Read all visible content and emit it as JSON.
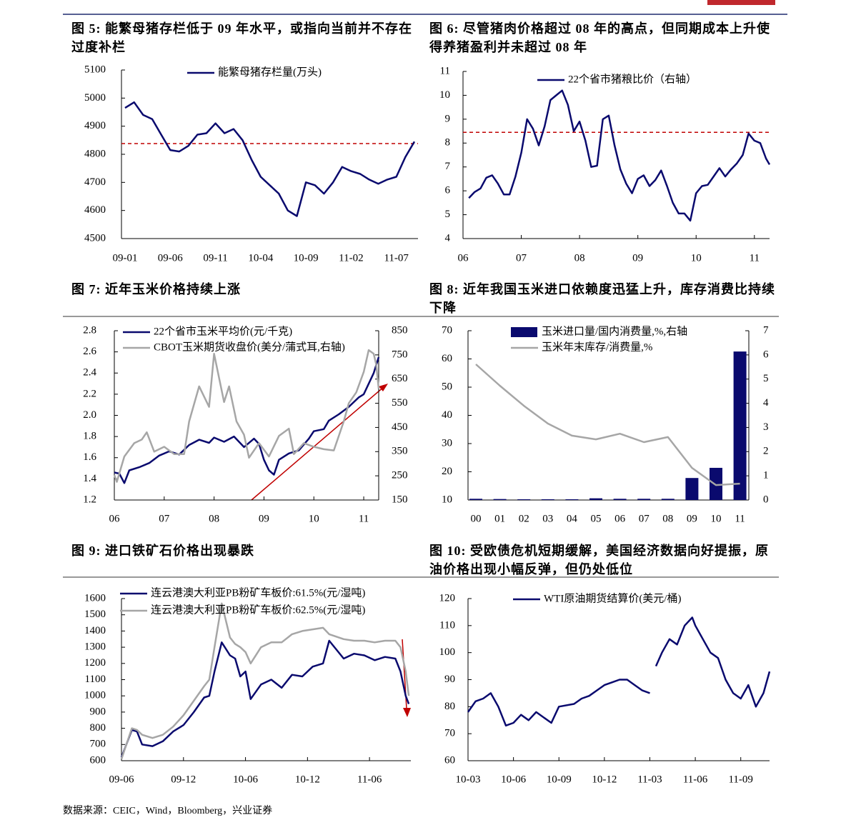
{
  "chart_data": [
    {
      "type": "line",
      "title": "图 5: 能繁母猪存栏低于 09 年水平，或指向当前并不存在过度补栏",
      "categories": [
        "09-01",
        null,
        null,
        null,
        null,
        "09-06",
        null,
        null,
        null,
        null,
        "09-11",
        null,
        null,
        null,
        null,
        "10-04",
        null,
        null,
        null,
        null,
        "10-09",
        null,
        null,
        null,
        null,
        "11-02",
        null,
        null,
        null,
        null,
        "11-07",
        null,
        null
      ],
      "series": [
        {
          "name": "能繁母猪存栏量(万头)",
          "color": "#0a0a6e",
          "values": [
            4965,
            4985,
            4940,
            4925,
            4870,
            4815,
            4810,
            4830,
            4870,
            4875,
            4910,
            4875,
            4890,
            4850,
            4780,
            4720,
            4690,
            4660,
            4600,
            4580,
            4700,
            4690,
            4660,
            4700,
            4755,
            4740,
            4730,
            4710,
            4695,
            4710,
            4720,
            4790,
            4845
          ]
        }
      ],
      "ylim": [
        4500,
        5100
      ],
      "yticks": [
        4500,
        4600,
        4700,
        4800,
        4900,
        5000,
        5100
      ],
      "reference_line": 4838,
      "reference_color": "#c00000"
    },
    {
      "type": "line",
      "title": "图 6: 尽管猪肉价格超过 08 年的高点，但同期成本上升使得养猪盈利并未超过 08 年",
      "x": [
        2006.1,
        2006.2,
        2006.3,
        2006.4,
        2006.5,
        2006.6,
        2006.7,
        2006.8,
        2006.9,
        2007.0,
        2007.1,
        2007.2,
        2007.3,
        2007.4,
        2007.5,
        2007.6,
        2007.7,
        2007.8,
        2007.9,
        2008.0,
        2008.1,
        2008.2,
        2008.3,
        2008.4,
        2008.5,
        2008.6,
        2008.7,
        2008.8,
        2008.9,
        2009.0,
        2009.1,
        2009.2,
        2009.3,
        2009.4,
        2009.5,
        2009.6,
        2009.7,
        2009.8,
        2009.9,
        2010.0,
        2010.1,
        2010.2,
        2010.3,
        2010.4,
        2010.5,
        2010.6,
        2010.7,
        2010.8,
        2010.9,
        2011.0,
        2011.1,
        2011.2,
        2011.26
      ],
      "series": [
        {
          "name": "22个省市猪粮比价（右轴）",
          "color": "#0a0a6e",
          "values": [
            5.7,
            5.95,
            6.1,
            6.55,
            6.65,
            6.3,
            5.85,
            5.85,
            6.6,
            7.6,
            9.0,
            8.6,
            7.9,
            8.7,
            9.8,
            10.0,
            10.2,
            9.6,
            8.5,
            8.9,
            8.1,
            7.0,
            7.05,
            9.0,
            9.15,
            7.9,
            6.9,
            6.3,
            5.9,
            6.5,
            6.65,
            6.2,
            6.45,
            6.85,
            6.2,
            5.5,
            5.05,
            5.05,
            4.75,
            5.9,
            6.2,
            6.25,
            6.6,
            6.95,
            6.6,
            6.9,
            7.15,
            7.5,
            8.4,
            8.1,
            8.0,
            7.35,
            7.1
          ]
        }
      ],
      "xlim": [
        2006,
        2011.26
      ],
      "xticks": [
        {
          "value": 2006,
          "label": "06"
        },
        {
          "value": 2007,
          "label": "07"
        },
        {
          "value": 2008,
          "label": "08"
        },
        {
          "value": 2009,
          "label": "09"
        },
        {
          "value": 2010,
          "label": "10"
        },
        {
          "value": 2011,
          "label": "11"
        }
      ],
      "ylim": [
        4,
        11
      ],
      "yticks": [
        4,
        5,
        6,
        7,
        8,
        9,
        10,
        11
      ],
      "reference_line": 8.45,
      "reference_color": "#c00000"
    },
    {
      "type": "line",
      "title": "图 7: 近年玉米价格持续上涨",
      "series": [
        {
          "name": "22个省市玉米平均价(元/千克)",
          "color": "#0a0a6e",
          "x": [
            2006.0,
            2006.1,
            2006.2,
            2006.3,
            2006.5,
            2006.7,
            2006.9,
            2007.1,
            2007.3,
            2007.5,
            2007.7,
            2007.9,
            2008.0,
            2008.2,
            2008.4,
            2008.6,
            2008.8,
            2008.9,
            2009.0,
            2009.1,
            2009.2,
            2009.3,
            2009.5,
            2009.7,
            2009.9,
            2010.0,
            2010.2,
            2010.3,
            2010.5,
            2010.7,
            2010.9,
            2011.0,
            2011.2,
            2011.3
          ],
          "values": [
            1.46,
            1.45,
            1.36,
            1.48,
            1.51,
            1.55,
            1.62,
            1.66,
            1.63,
            1.72,
            1.77,
            1.74,
            1.79,
            1.75,
            1.8,
            1.7,
            1.78,
            1.73,
            1.58,
            1.48,
            1.44,
            1.58,
            1.64,
            1.67,
            1.78,
            1.85,
            1.87,
            1.95,
            2.01,
            2.08,
            2.17,
            2.2,
            2.4,
            2.55
          ]
        },
        {
          "name": "CBOT玉米期货收盘价(美分/蒲式耳,右轴)",
          "color": "#a6a6a6",
          "axis": "y2",
          "x": [
            2006.0,
            2006.05,
            2006.2,
            2006.4,
            2006.55,
            2006.65,
            2006.8,
            2007.0,
            2007.2,
            2007.4,
            2007.5,
            2007.7,
            2007.9,
            2008.0,
            2008.2,
            2008.3,
            2008.45,
            2008.6,
            2008.7,
            2008.9,
            2009.1,
            2009.3,
            2009.5,
            2009.6,
            2009.8,
            2010.0,
            2010.2,
            2010.4,
            2010.6,
            2010.7,
            2010.85,
            2011.0,
            2011.1,
            2011.2,
            2011.25,
            2011.3
          ],
          "values": [
            253,
            225,
            330,
            385,
            400,
            430,
            350,
            370,
            340,
            340,
            475,
            620,
            535,
            755,
            555,
            620,
            475,
            420,
            325,
            385,
            330,
            415,
            445,
            340,
            385,
            370,
            360,
            355,
            475,
            550,
            595,
            680,
            770,
            755,
            710,
            610
          ]
        }
      ],
      "xlim": [
        2006,
        2011.3
      ],
      "xticks": [
        {
          "value": 2006,
          "label": "06"
        },
        {
          "value": 2007,
          "label": "07"
        },
        {
          "value": 2008,
          "label": "08"
        },
        {
          "value": 2009,
          "label": "09"
        },
        {
          "value": 2010,
          "label": "10"
        },
        {
          "value": 2011,
          "label": "11"
        }
      ],
      "ylim": [
        1.2,
        2.8
      ],
      "yticks": [
        1.2,
        1.4,
        1.6,
        1.8,
        {
          "value": 2,
          "label": "2.0"
        },
        2.2,
        2.4,
        2.6,
        2.8
      ],
      "y2lim": [
        150,
        850
      ],
      "y2ticks": [
        150,
        250,
        350,
        450,
        550,
        650,
        750,
        850
      ]
    },
    {
      "type": "bar",
      "title": "图 8: 近年我国玉米进口依赖度迅猛上升，库存消费比持续下降",
      "categories": [
        "00",
        "01",
        "02",
        "03",
        "04",
        "05",
        "06",
        "07",
        "08",
        "09",
        "10",
        "11"
      ],
      "series": [
        {
          "name": "玉米进口量/国内消费量,%,右轴",
          "color": "#0a0a6e",
          "axis": "y2",
          "values": [
            0.05,
            0.04,
            0.03,
            0.03,
            0.03,
            0.07,
            0.05,
            0.05,
            0.05,
            0.91,
            1.33,
            6.14
          ]
        },
        {
          "name": "玉米年末库存/消费量,%",
          "color": "#a6a6a6",
          "type": "line",
          "values": [
            58.1,
            50.5,
            43.4,
            37.1,
            32.8,
            31.5,
            33.5,
            30.5,
            32.3,
            21.4,
            15.3,
            15.8
          ]
        }
      ],
      "ylim": [
        10,
        70
      ],
      "yticks": [
        10,
        20,
        30,
        40,
        50,
        60,
        70
      ],
      "y2lim": [
        0,
        7
      ],
      "y2ticks": [
        0,
        1,
        2,
        3,
        4,
        5,
        6,
        7
      ]
    },
    {
      "type": "line",
      "title": "图 9: 进口铁矿石价格出现暴跌",
      "x": [
        0,
        1,
        1.5,
        2,
        3,
        4,
        5,
        6,
        7,
        8,
        8.5,
        9,
        9.7,
        10.5,
        11,
        11.5,
        12,
        12.5,
        13.5,
        14.5,
        15.5,
        16.5,
        17.5,
        18.5,
        19.5,
        20.1,
        21.5,
        22.5,
        23.5,
        24.5,
        25.5,
        26.5,
        27,
        27.5,
        27.8
      ],
      "series": [
        {
          "name": "连云港澳大利亚PB粉矿车板价:61.5%(元/湿吨)",
          "color": "#0a0a6e",
          "values": [
            620,
            790,
            780,
            700,
            690,
            720,
            780,
            820,
            900,
            990,
            1000,
            1150,
            1330,
            1250,
            1230,
            1120,
            1150,
            980,
            1070,
            1100,
            1050,
            1130,
            1120,
            1180,
            1200,
            1340,
            1230,
            1260,
            1250,
            1220,
            1240,
            1230,
            1150,
            1000,
            950
          ]
        },
        {
          "name": "连云港澳大利亚PB粉矿车板价:62.5%(元/湿吨)",
          "color": "#a6a6a6",
          "values": [
            610,
            800,
            790,
            760,
            740,
            760,
            810,
            880,
            970,
            1060,
            1100,
            1300,
            1570,
            1360,
            1320,
            1300,
            1270,
            1200,
            1300,
            1330,
            1330,
            1380,
            1400,
            1410,
            1420,
            1380,
            1350,
            1340,
            1340,
            1330,
            1340,
            1340,
            1300,
            1150,
            1000
          ]
        }
      ],
      "xlim": [
        0,
        28
      ],
      "xticks": [
        {
          "value": 0,
          "label": "09-06"
        },
        {
          "value": 6,
          "label": "09-12"
        },
        {
          "value": 12,
          "label": "10-06"
        },
        {
          "value": 18,
          "label": "10-12"
        },
        {
          "value": 24,
          "label": "11-06"
        }
      ],
      "ylim": [
        600,
        1600
      ],
      "yticks": [
        600,
        700,
        800,
        900,
        1000,
        1100,
        1200,
        1300,
        1400,
        1500,
        1600
      ]
    },
    {
      "type": "line",
      "title": "图 10: 受欧债危机短期缓解，美国经济数据向好提振，原油价格出现小幅反弹，但仍处低位",
      "x": [
        0,
        0.5,
        1,
        1.5,
        2,
        2.5,
        3,
        3.5,
        4,
        4.5,
        5,
        5.5,
        6,
        7,
        7.5,
        8,
        8.5,
        9,
        9.5,
        10,
        10.5,
        11,
        11.5,
        12,
        12.3,
        12.4,
        12.8,
        13.3,
        13.8,
        14.3,
        14.8,
        15,
        15.5,
        16,
        16.5,
        17,
        17.5,
        18,
        18.5,
        19,
        19.5,
        19.9
      ],
      "series": [
        {
          "name": "WTI原油期货结算价(美元/桶)",
          "color": "#0a0a6e",
          "values": [
            78,
            82,
            83,
            85,
            80,
            73,
            74,
            77,
            75,
            78,
            76,
            74,
            80,
            81,
            83,
            84,
            86,
            88,
            89,
            90,
            90,
            88,
            86,
            85,
            null,
            95,
            100,
            105,
            103,
            110,
            113,
            110,
            105,
            100,
            98,
            90,
            85,
            83,
            88,
            80,
            85,
            93
          ]
        }
      ],
      "xlim": [
        0,
        19.9
      ],
      "xticks": [
        {
          "value": 0,
          "label": "10-03"
        },
        {
          "value": 3,
          "label": "10-06"
        },
        {
          "value": 6,
          "label": "10-09"
        },
        {
          "value": 9,
          "label": "10-12"
        },
        {
          "value": 12,
          "label": "11-03"
        },
        {
          "value": 15,
          "label": "11-06"
        },
        {
          "value": 18,
          "label": "11-09"
        }
      ],
      "ylim": [
        60,
        120
      ],
      "yticks": [
        60,
        70,
        80,
        90,
        100,
        110,
        120
      ]
    }
  ],
  "source": "数据来源：CEIC，Wind，Bloomberg，兴业证券"
}
